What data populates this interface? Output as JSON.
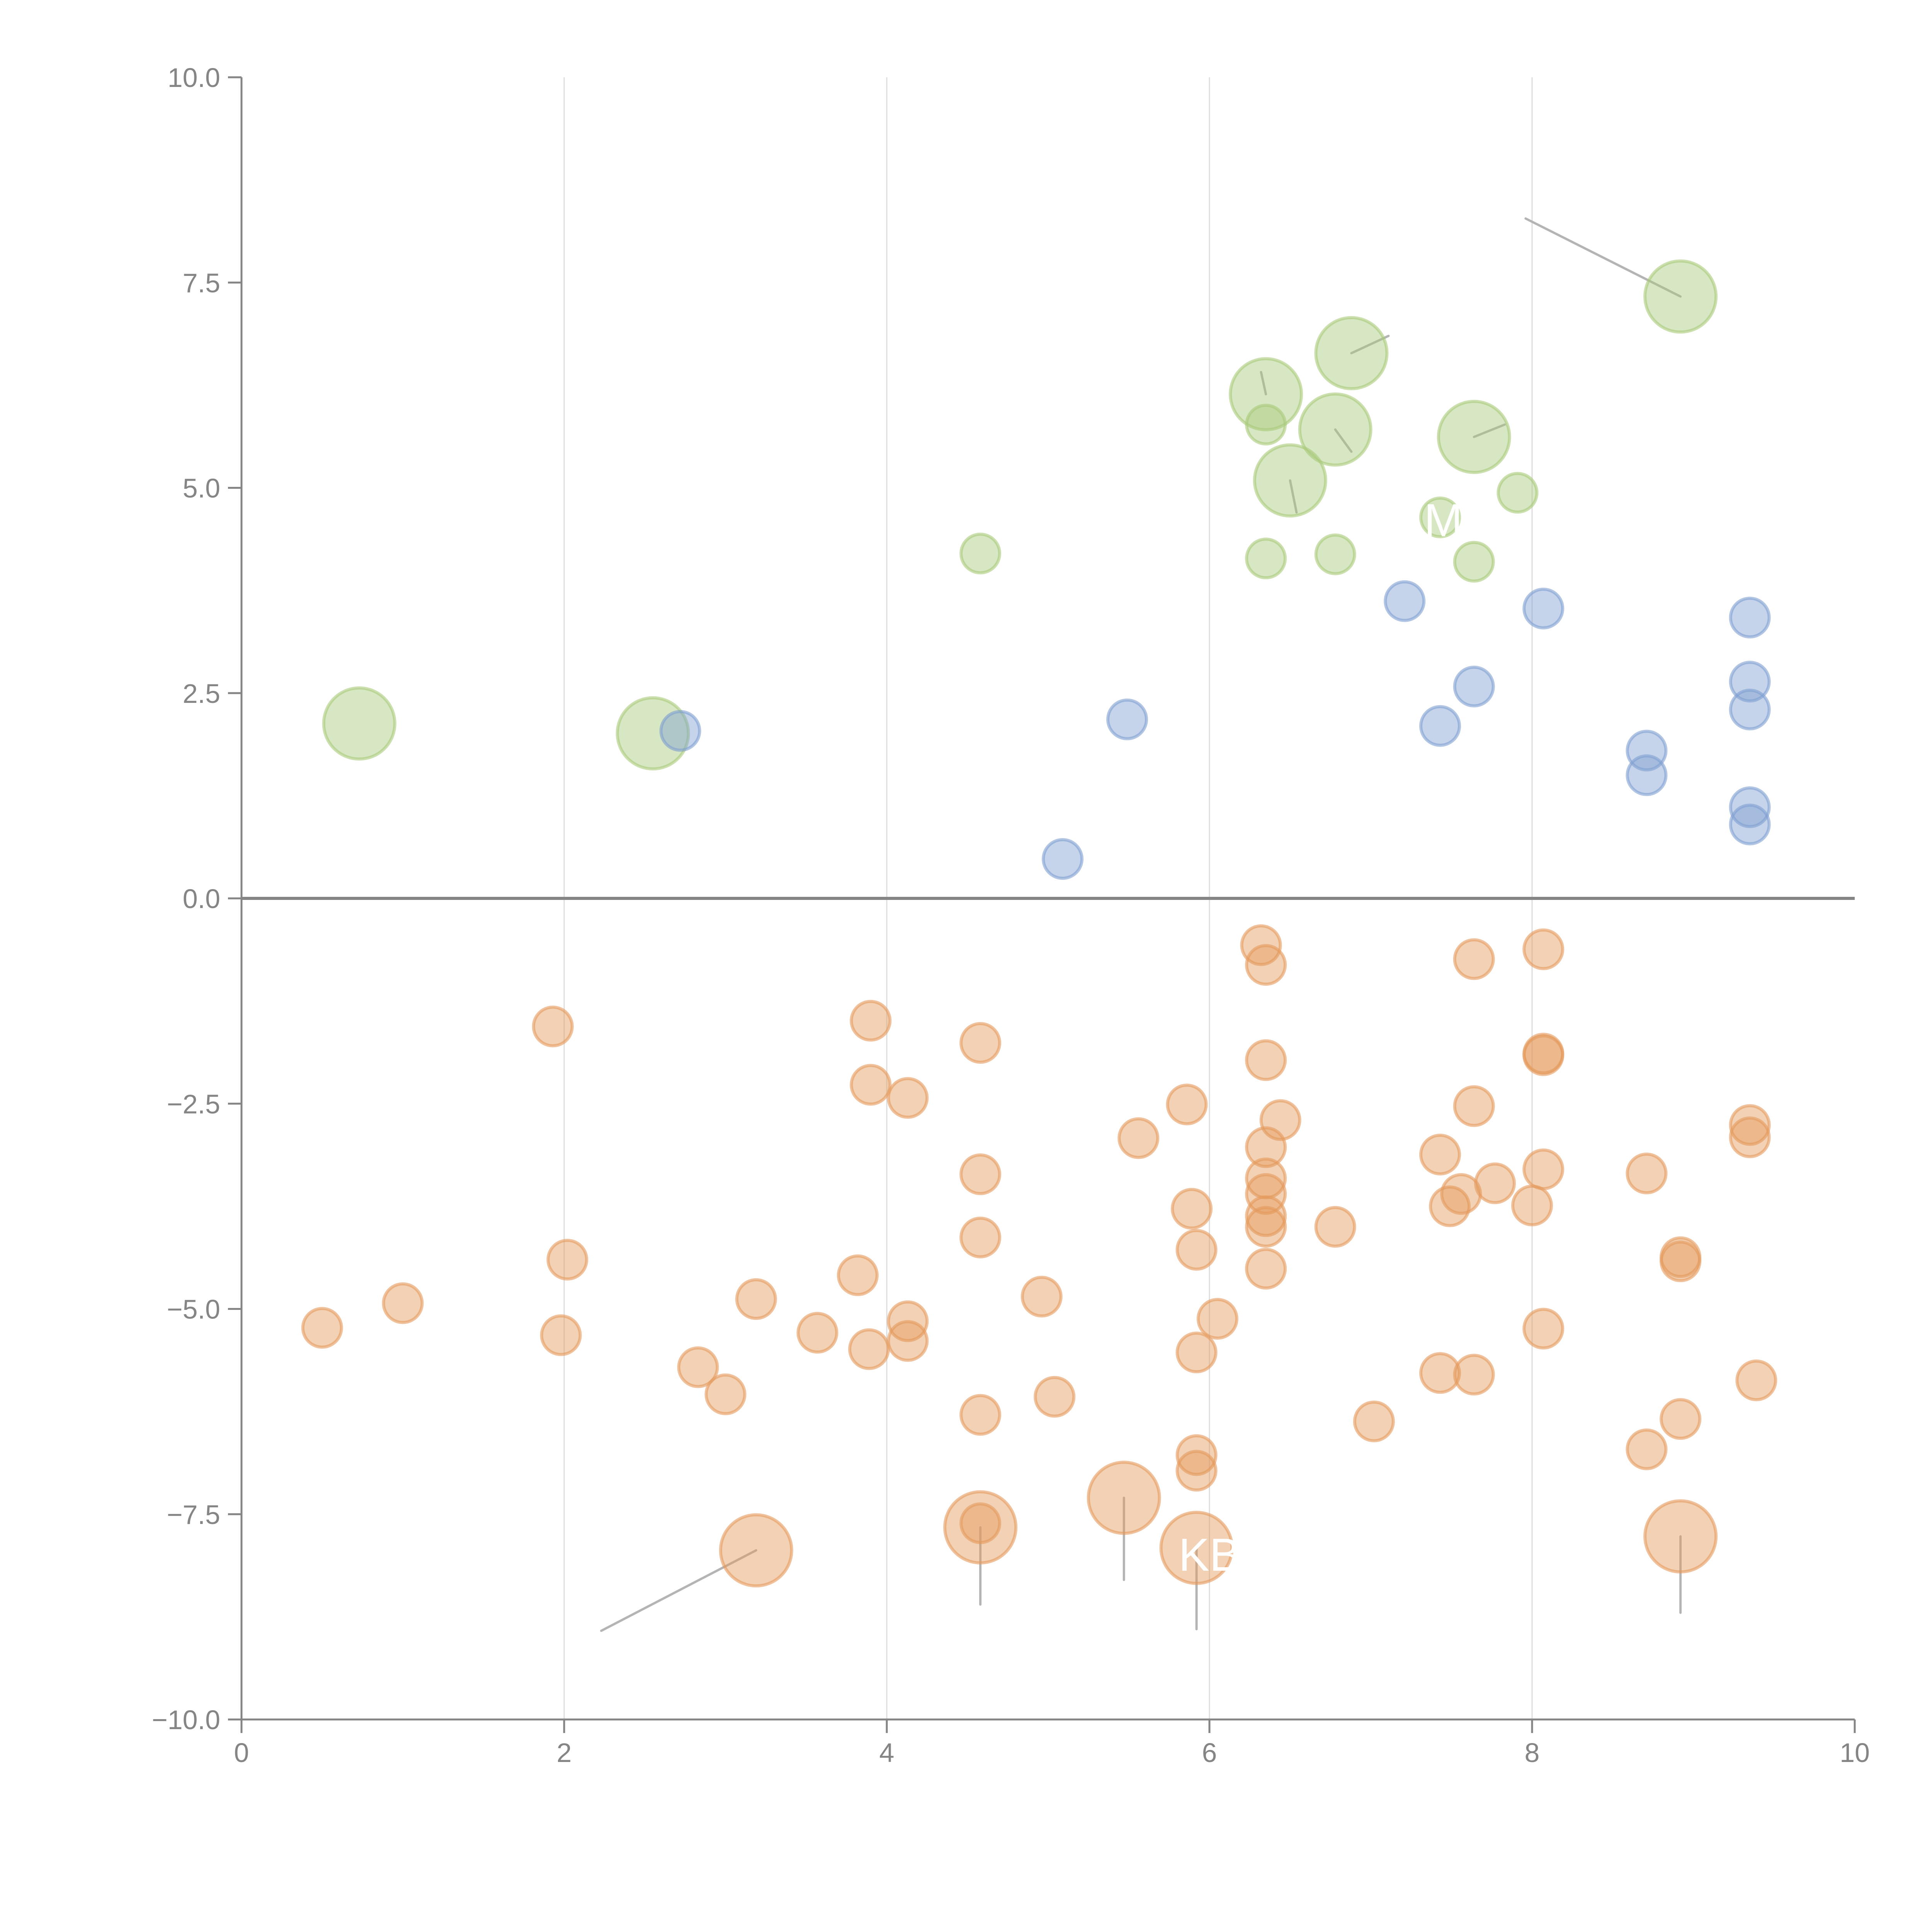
{
  "chart_data": {
    "type": "scatter",
    "title": "",
    "xlabel": "",
    "ylabel": "",
    "xlim": [
      0,
      10
    ],
    "ylim": [
      -10,
      10
    ],
    "grid": true,
    "x_ticks": [
      "0",
      "2",
      "4",
      "6",
      "8",
      "10"
    ],
    "x_tick_values": [
      0,
      2,
      4,
      6,
      8,
      10
    ],
    "y_ticks": [
      "10.0",
      "7.5",
      "5.0",
      "2.5",
      "0.0",
      "−2.5",
      "−5.0",
      "−7.5",
      "−10.0"
    ],
    "y_tick_values": [
      10,
      7.5,
      5,
      2.5,
      0,
      -2.5,
      -5,
      -7.5,
      -10
    ],
    "colors": {
      "green": "#a9c97a",
      "blue": "#7f9fd1",
      "orange": "#e59a5c",
      "axis": "#858585",
      "leader": "#b4b4b4"
    },
    "series": [
      {
        "name": "green",
        "color": "#a9c97a",
        "points": [
          {
            "x": 0.73,
            "y": 2.13,
            "size": 3
          },
          {
            "x": 2.55,
            "y": 2.01,
            "size": 3
          },
          {
            "x": 6.35,
            "y": 6.14,
            "size": 3
          },
          {
            "x": 6.88,
            "y": 6.64,
            "size": 3
          },
          {
            "x": 6.78,
            "y": 5.71,
            "size": 3
          },
          {
            "x": 6.5,
            "y": 5.09,
            "size": 3
          },
          {
            "x": 7.64,
            "y": 5.62,
            "size": 3
          },
          {
            "x": 8.92,
            "y": 7.33,
            "size": 3
          },
          {
            "x": 4.58,
            "y": 4.2,
            "size": 1
          },
          {
            "x": 6.35,
            "y": 5.77,
            "size": 1
          },
          {
            "x": 6.35,
            "y": 4.14,
            "size": 1
          },
          {
            "x": 6.78,
            "y": 4.19,
            "size": 1
          },
          {
            "x": 7.43,
            "y": 4.64,
            "size": 1
          },
          {
            "x": 7.64,
            "y": 4.1,
            "size": 1
          },
          {
            "x": 7.91,
            "y": 4.94,
            "size": 1
          }
        ]
      },
      {
        "name": "blue",
        "color": "#7f9fd1",
        "points": [
          {
            "x": 2.72,
            "y": 2.04,
            "size": 1
          },
          {
            "x": 5.49,
            "y": 2.18,
            "size": 1
          },
          {
            "x": 5.09,
            "y": 0.48,
            "size": 1
          },
          {
            "x": 7.21,
            "y": 3.62,
            "size": 1
          },
          {
            "x": 8.07,
            "y": 3.53,
            "size": 1
          },
          {
            "x": 7.43,
            "y": 2.1,
            "size": 1
          },
          {
            "x": 7.64,
            "y": 2.58,
            "size": 1
          },
          {
            "x": 8.71,
            "y": 1.8,
            "size": 1
          },
          {
            "x": 8.71,
            "y": 1.5,
            "size": 1
          },
          {
            "x": 9.35,
            "y": 3.42,
            "size": 1
          },
          {
            "x": 9.35,
            "y": 2.64,
            "size": 1
          },
          {
            "x": 9.35,
            "y": 2.3,
            "size": 1
          },
          {
            "x": 9.35,
            "y": 1.11,
            "size": 1
          },
          {
            "x": 9.35,
            "y": 0.9,
            "size": 1
          }
        ]
      },
      {
        "name": "orange",
        "color": "#e59a5c",
        "points": [
          {
            "x": 3.19,
            "y": -7.94,
            "size": 3
          },
          {
            "x": 4.58,
            "y": -7.66,
            "size": 3
          },
          {
            "x": 5.47,
            "y": -7.3,
            "size": 3
          },
          {
            "x": 5.92,
            "y": -7.91,
            "size": 3
          },
          {
            "x": 8.92,
            "y": -7.77,
            "size": 3
          },
          {
            "x": 0.5,
            "y": -5.23,
            "size": 1
          },
          {
            "x": 1.0,
            "y": -4.93,
            "size": 1
          },
          {
            "x": 1.93,
            "y": -1.56,
            "size": 1
          },
          {
            "x": 2.02,
            "y": -4.4,
            "size": 1
          },
          {
            "x": 1.98,
            "y": -5.32,
            "size": 1
          },
          {
            "x": 2.83,
            "y": -5.71,
            "size": 1
          },
          {
            "x": 3.0,
            "y": -6.04,
            "size": 1
          },
          {
            "x": 3.19,
            "y": -4.88,
            "size": 1
          },
          {
            "x": 3.57,
            "y": -5.29,
            "size": 1
          },
          {
            "x": 3.82,
            "y": -4.59,
            "size": 1
          },
          {
            "x": 3.89,
            "y": -5.49,
            "size": 1
          },
          {
            "x": 3.9,
            "y": -1.49,
            "size": 1
          },
          {
            "x": 3.9,
            "y": -2.27,
            "size": 1
          },
          {
            "x": 4.13,
            "y": -2.43,
            "size": 1
          },
          {
            "x": 4.13,
            "y": -5.15,
            "size": 1
          },
          {
            "x": 4.13,
            "y": -5.39,
            "size": 1
          },
          {
            "x": 4.58,
            "y": -1.76,
            "size": 1
          },
          {
            "x": 4.58,
            "y": -3.36,
            "size": 1
          },
          {
            "x": 4.58,
            "y": -4.13,
            "size": 1
          },
          {
            "x": 4.58,
            "y": -6.29,
            "size": 1
          },
          {
            "x": 4.58,
            "y": -7.61,
            "size": 1
          },
          {
            "x": 4.96,
            "y": -4.85,
            "size": 1
          },
          {
            "x": 5.04,
            "y": -6.07,
            "size": 1
          },
          {
            "x": 5.56,
            "y": -2.92,
            "size": 1
          },
          {
            "x": 5.86,
            "y": -2.51,
            "size": 1
          },
          {
            "x": 5.89,
            "y": -3.78,
            "size": 1
          },
          {
            "x": 5.92,
            "y": -4.28,
            "size": 1
          },
          {
            "x": 5.92,
            "y": -5.53,
            "size": 1
          },
          {
            "x": 5.92,
            "y": -6.78,
            "size": 1
          },
          {
            "x": 5.92,
            "y": -6.97,
            "size": 1
          },
          {
            "x": 6.05,
            "y": -5.12,
            "size": 1
          },
          {
            "x": 6.32,
            "y": -0.57,
            "size": 1
          },
          {
            "x": 6.35,
            "y": -0.81,
            "size": 1
          },
          {
            "x": 6.35,
            "y": -1.97,
            "size": 1
          },
          {
            "x": 6.44,
            "y": -2.7,
            "size": 1
          },
          {
            "x": 6.35,
            "y": -3.03,
            "size": 1
          },
          {
            "x": 6.35,
            "y": -3.41,
            "size": 1
          },
          {
            "x": 6.35,
            "y": -3.6,
            "size": 1
          },
          {
            "x": 6.35,
            "y": -3.87,
            "size": 1
          },
          {
            "x": 6.35,
            "y": -4.0,
            "size": 1
          },
          {
            "x": 6.35,
            "y": -4.51,
            "size": 1
          },
          {
            "x": 6.78,
            "y": -4.0,
            "size": 1
          },
          {
            "x": 7.02,
            "y": -6.37,
            "size": 1
          },
          {
            "x": 7.43,
            "y": -3.12,
            "size": 1
          },
          {
            "x": 7.49,
            "y": -3.75,
            "size": 1
          },
          {
            "x": 7.56,
            "y": -3.6,
            "size": 1
          },
          {
            "x": 7.43,
            "y": -5.78,
            "size": 1
          },
          {
            "x": 7.64,
            "y": -0.74,
            "size": 1
          },
          {
            "x": 7.64,
            "y": -2.53,
            "size": 1
          },
          {
            "x": 7.64,
            "y": -5.8,
            "size": 1
          },
          {
            "x": 7.77,
            "y": -3.47,
            "size": 1
          },
          {
            "x": 8.0,
            "y": -3.74,
            "size": 1
          },
          {
            "x": 8.07,
            "y": -0.62,
            "size": 1
          },
          {
            "x": 8.07,
            "y": -1.89,
            "size": 1
          },
          {
            "x": 8.07,
            "y": -1.91,
            "size": 1
          },
          {
            "x": 8.07,
            "y": -3.3,
            "size": 1
          },
          {
            "x": 8.07,
            "y": -5.24,
            "size": 1
          },
          {
            "x": 8.71,
            "y": -3.35,
            "size": 1
          },
          {
            "x": 8.71,
            "y": -6.71,
            "size": 1
          },
          {
            "x": 8.92,
            "y": -4.37,
            "size": 1
          },
          {
            "x": 8.92,
            "y": -4.42,
            "size": 1
          },
          {
            "x": 8.92,
            "y": -6.34,
            "size": 1
          },
          {
            "x": 9.35,
            "y": -2.76,
            "size": 1
          },
          {
            "x": 9.35,
            "y": -2.91,
            "size": 1
          },
          {
            "x": 9.39,
            "y": -5.87,
            "size": 1
          }
        ]
      }
    ],
    "annotations": [
      {
        "text": "KB",
        "x": 5.92,
        "y": -7.91,
        "label_x": 6.0,
        "label_y": -8.0,
        "color": "#ffffff"
      },
      {
        "text": "M",
        "x": 7.43,
        "y": 4.64,
        "label_x": 7.45,
        "label_y": 4.6,
        "color": "#ffffff"
      }
    ],
    "leader_lines": [
      {
        "from": [
          8.92,
          7.33
        ],
        "to": [
          7.96,
          8.28
        ]
      },
      {
        "from": [
          3.19,
          -7.94
        ],
        "to": [
          2.23,
          -8.92
        ]
      },
      {
        "from": [
          4.58,
          -7.66
        ],
        "to": [
          4.58,
          -8.6
        ]
      },
      {
        "from": [
          5.47,
          -7.3
        ],
        "to": [
          5.47,
          -8.3
        ]
      },
      {
        "from": [
          5.92,
          -7.91
        ],
        "to": [
          5.92,
          -8.9
        ]
      },
      {
        "from": [
          8.92,
          -7.77
        ],
        "to": [
          8.92,
          -8.7
        ]
      },
      {
        "from": [
          6.88,
          6.64
        ],
        "to": [
          7.11,
          6.85
        ],
        "color": "#f0f0f0"
      },
      {
        "from": [
          6.35,
          6.14
        ],
        "to": [
          6.32,
          6.41
        ],
        "color": "#f0f0f0"
      },
      {
        "from": [
          6.78,
          5.71
        ],
        "to": [
          6.88,
          5.44
        ],
        "color": "#f0f0f0"
      },
      {
        "from": [
          6.5,
          5.09
        ],
        "to": [
          6.54,
          4.7
        ],
        "color": "#f0f0f0"
      },
      {
        "from": [
          7.64,
          5.62
        ],
        "to": [
          7.83,
          5.77
        ],
        "color": "#f0f0f0"
      }
    ]
  }
}
